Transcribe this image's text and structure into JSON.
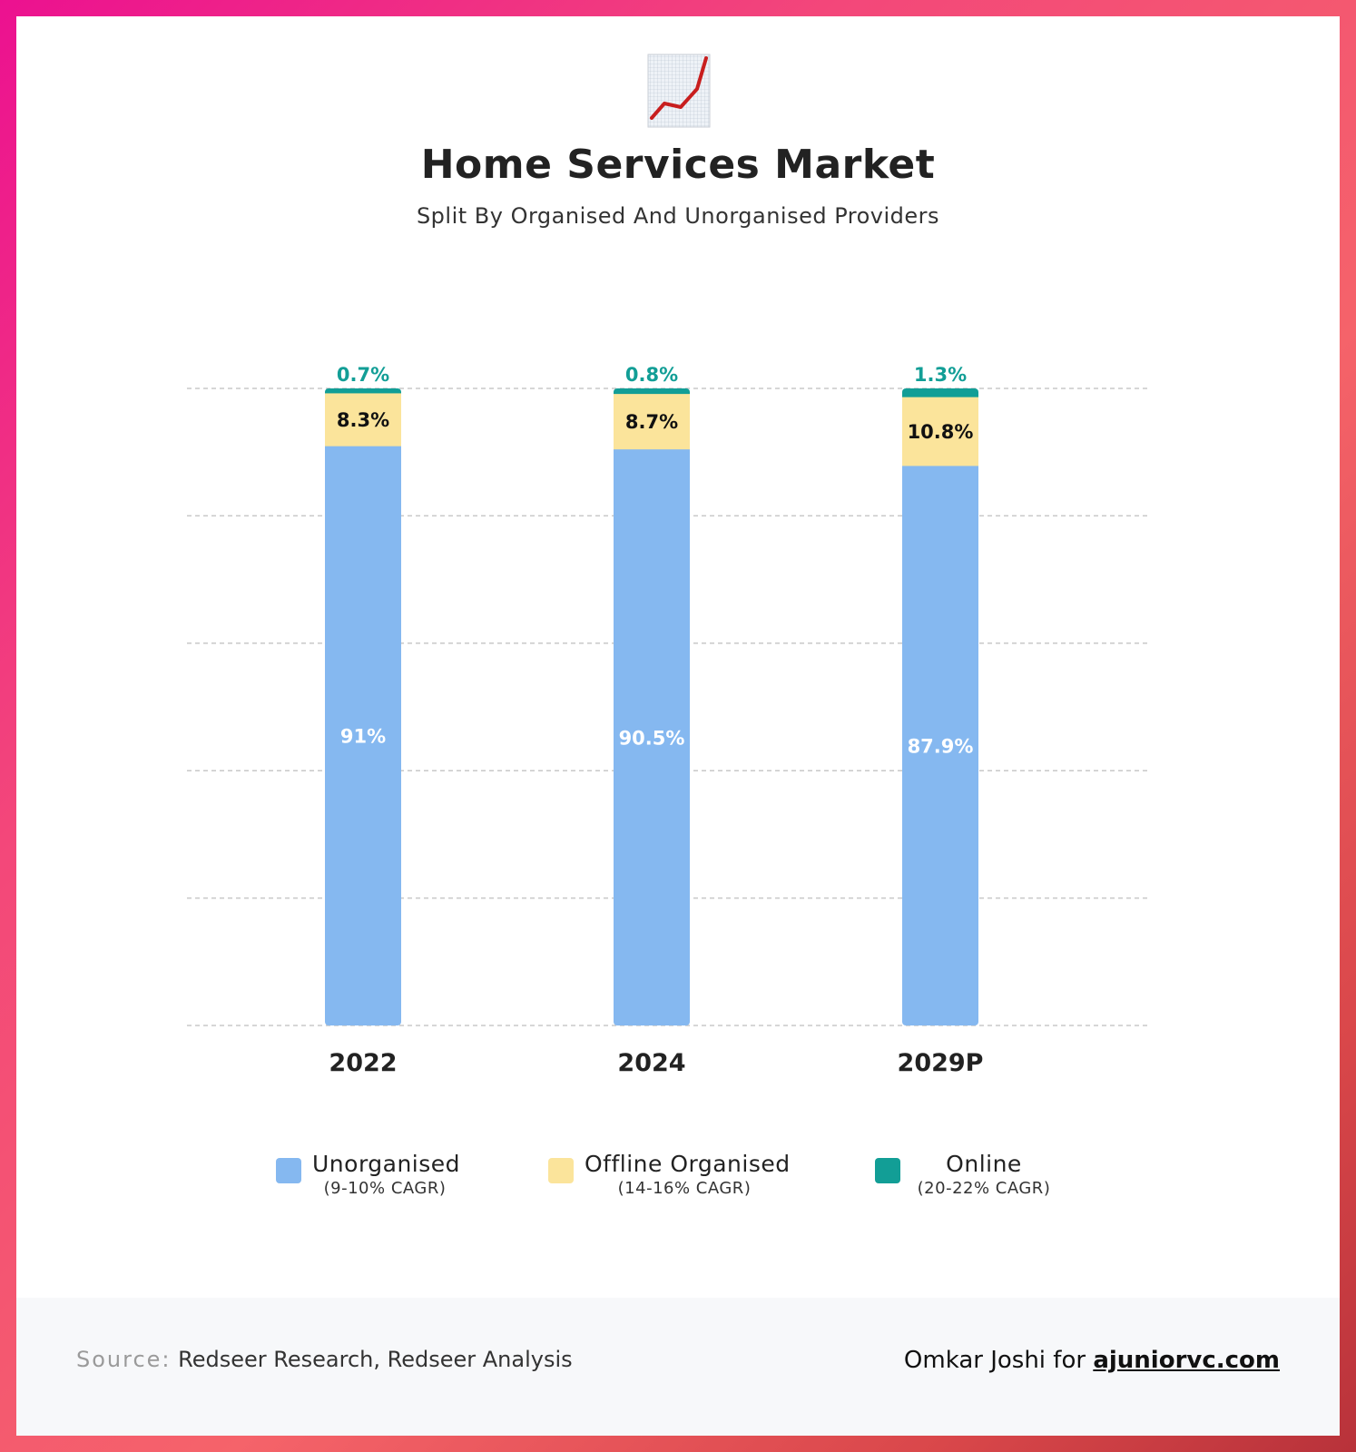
{
  "header": {
    "icon": "chart-increasing-icon",
    "title": "Home Services Market",
    "subtitle": "Split By Organised And Unorganised Providers"
  },
  "colors": {
    "unorganised": "#85b8f0",
    "offline_organised": "#fbe49b",
    "online": "#129e96",
    "online_label": "#129e96",
    "grid": "#c8c8c8"
  },
  "chart_data": {
    "type": "bar",
    "stacked": true,
    "normalized": true,
    "title": "Home Services Market",
    "subtitle": "Split By Organised And Unorganised Providers",
    "categories": [
      "2022",
      "2024",
      "2029P"
    ],
    "series": [
      {
        "name": "Unorganised",
        "cagr": "(9-10% CAGR)",
        "values": [
          91,
          90.5,
          87.9
        ],
        "labels": [
          "91%",
          "90.5%",
          "87.9%"
        ]
      },
      {
        "name": "Offline Organised",
        "cagr": "(14-16% CAGR)",
        "values": [
          8.3,
          8.7,
          10.8
        ],
        "labels": [
          "8.3%",
          "8.7%",
          "10.8%"
        ]
      },
      {
        "name": "Online",
        "cagr": "(20-22% CAGR)",
        "values": [
          0.7,
          0.8,
          1.3
        ],
        "labels": [
          "0.7%",
          "0.8%",
          "1.3%"
        ]
      }
    ],
    "ylim": [
      0,
      100
    ],
    "grid": true,
    "legend": "bottom"
  },
  "footer": {
    "source_prefix": "Source:",
    "source_text": "Redseer Research, Redseer Analysis",
    "credit_prefix": "Omkar Joshi for",
    "credit_site": "ajuniorvc.com"
  }
}
